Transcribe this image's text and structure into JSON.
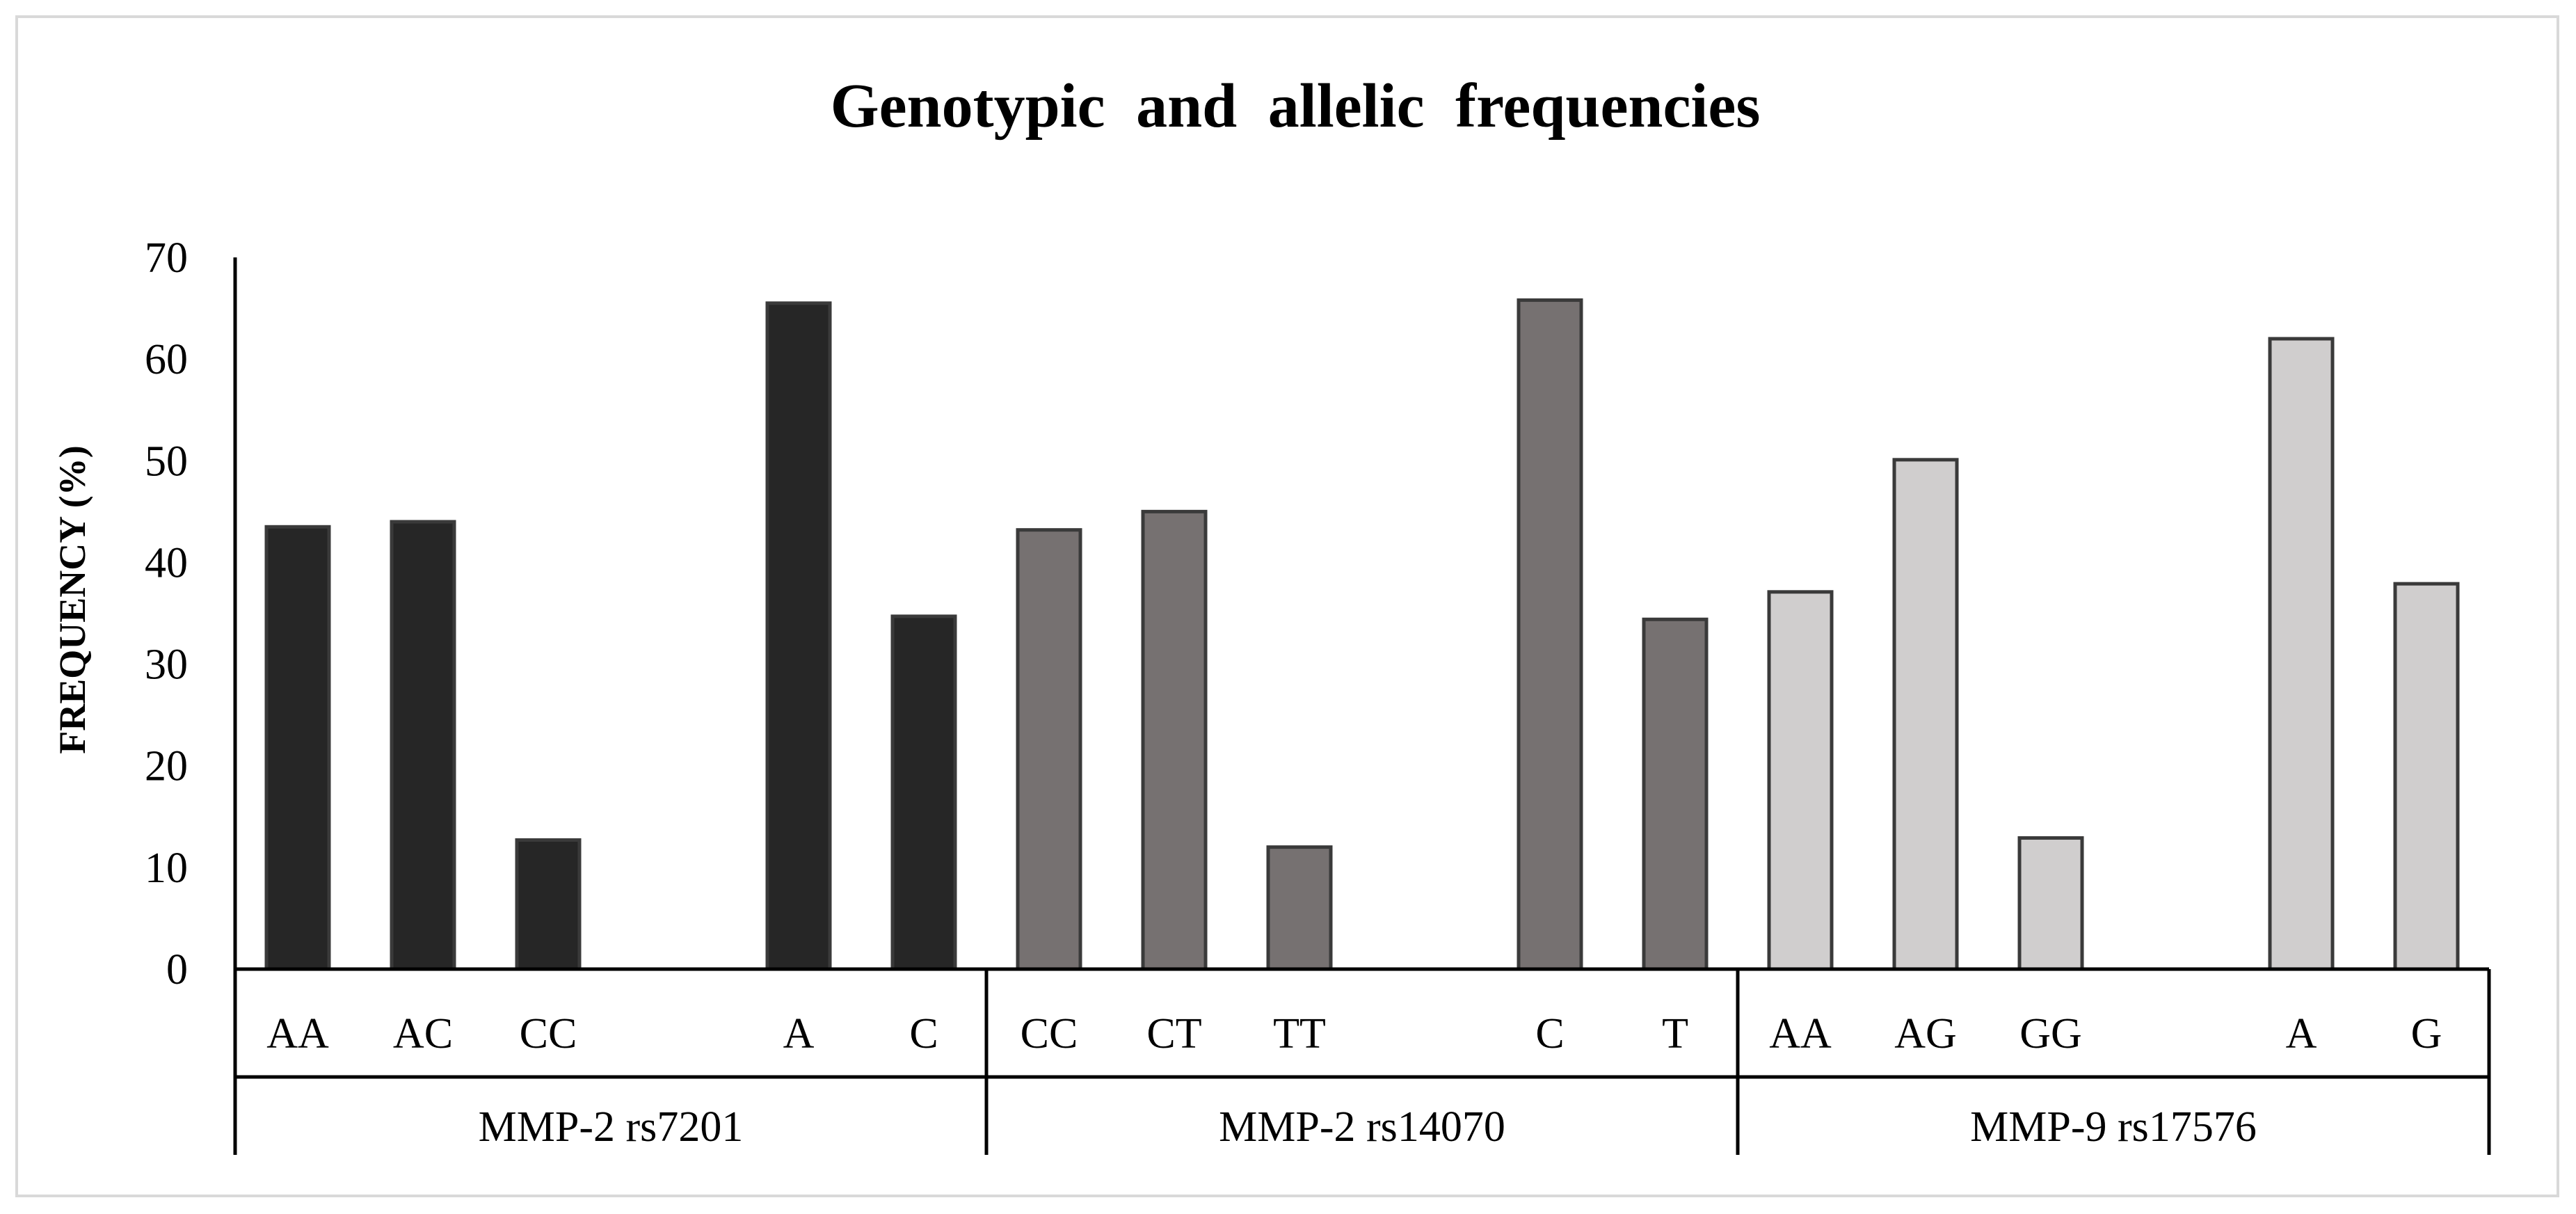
{
  "chart_data": {
    "type": "bar",
    "title": "Genotypic and allelic frequencies",
    "ylabel": "FREQUENCY (%)",
    "xlabel": "",
    "ylim": [
      0,
      70
    ],
    "yticks": [
      0,
      10,
      20,
      30,
      40,
      50,
      60,
      70
    ],
    "grid": false,
    "groups": [
      {
        "name": "MMP-2 rs7201",
        "color": "#262626",
        "categories": [
          "AA",
          "AC",
          "CC",
          "",
          "A",
          "C"
        ],
        "values": [
          43.5,
          44,
          12.7,
          null,
          65.5,
          34.7
        ]
      },
      {
        "name": "MMP-2 rs14070",
        "color": "#767171",
        "categories": [
          "CC",
          "CT",
          "TT",
          "",
          "C",
          "T"
        ],
        "values": [
          43.2,
          45,
          12,
          null,
          65.8,
          34.4
        ]
      },
      {
        "name": "MMP-9 rs17576",
        "color": "#d0cece",
        "categories": [
          "AA",
          "AG",
          "GG",
          "",
          "A",
          "G"
        ],
        "values": [
          37.1,
          50.1,
          12.9,
          null,
          62,
          37.9
        ]
      }
    ]
  }
}
